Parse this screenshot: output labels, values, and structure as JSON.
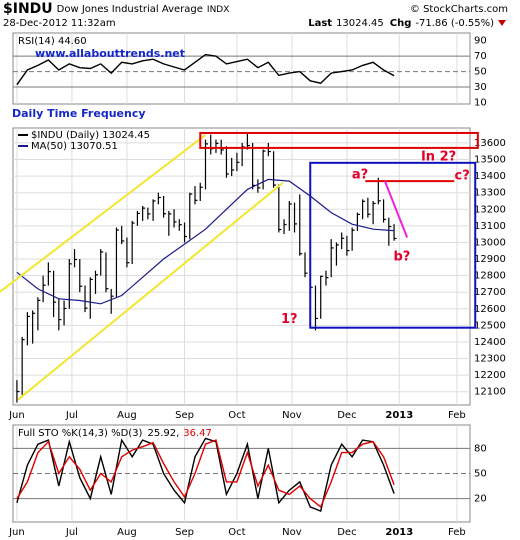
{
  "header": {
    "symbol": "$INDU",
    "name": "Dow Jones Industrial Average",
    "exchange": "INDX",
    "date": "28-Dec-2012 11:32am",
    "source": "© StockCharts.com",
    "last_label": "Last",
    "last": "13024.45",
    "chg_label": "Chg",
    "chg": "-71.86 (-0.55%)"
  },
  "chart_data": [
    {
      "type": "line",
      "title": "RSI(14) 44.60",
      "note": "www.allabouttrends.net",
      "x": [
        0,
        4,
        8,
        12,
        16,
        20,
        24,
        28,
        32,
        36,
        40,
        44,
        48,
        52,
        56,
        60,
        64,
        68,
        72,
        76,
        80,
        84,
        88,
        92,
        96,
        100,
        104,
        108,
        112,
        116,
        120,
        124,
        128,
        132,
        136,
        140,
        144
      ],
      "series": [
        {
          "color": "#000000",
          "values": [
            33,
            52,
            58,
            65,
            52,
            60,
            55,
            54,
            60,
            48,
            62,
            60,
            64,
            66,
            60,
            56,
            52,
            62,
            72,
            70,
            60,
            63,
            66,
            55,
            62,
            45,
            48,
            50,
            38,
            35,
            48,
            50,
            52,
            58,
            62,
            52,
            44.6
          ]
        }
      ],
      "xlim": [
        -1.5,
        173
      ],
      "ylim": [
        8,
        100
      ],
      "yticks": [
        90,
        70,
        50,
        30,
        10
      ],
      "levels": [
        70,
        30
      ],
      "midline": 50
    },
    {
      "type": "ohlc",
      "subtitle": "Daily Time Frequency",
      "x": [
        0,
        2,
        4,
        6,
        8,
        10,
        12,
        14,
        16,
        18,
        20,
        22,
        24,
        26,
        28,
        30,
        32,
        34,
        36,
        38,
        40,
        42,
        44,
        46,
        48,
        50,
        52,
        54,
        56,
        58,
        60,
        62,
        64,
        66,
        68,
        70,
        72,
        74,
        76,
        78,
        80,
        82,
        84,
        86,
        88,
        90,
        92,
        94,
        96,
        98,
        100,
        102,
        104,
        106,
        108,
        110,
        112,
        114,
        116,
        118,
        120,
        122,
        124,
        126,
        128,
        130,
        132,
        134,
        136,
        138,
        140,
        142,
        144
      ],
      "series": [
        {
          "name": "$INDU (Daily) 13024.45",
          "color": "#000000",
          "high": [
            12170,
            12430,
            12580,
            12590,
            12670,
            12800,
            12880,
            12830,
            12660,
            12650,
            12900,
            12960,
            12900,
            12740,
            12790,
            12830,
            12960,
            12940,
            12720,
            13090,
            13100,
            13030,
            13130,
            13190,
            13220,
            13210,
            13260,
            13300,
            13280,
            13190,
            13200,
            13140,
            13120,
            13300,
            13340,
            13360,
            13620,
            13650,
            13620,
            13620,
            13580,
            13510,
            13540,
            13600,
            13660,
            13600,
            13380,
            13560,
            13600,
            13550,
            13350,
            13140,
            13250,
            13240,
            13290,
            12940,
            12840,
            12740,
            12800,
            12830,
            13020,
            13000,
            13060,
            13040,
            13090,
            13180,
            13260,
            13270,
            13250,
            13390,
            13260,
            13150,
            13110
          ],
          "low": [
            12035,
            12080,
            12380,
            12390,
            12470,
            12640,
            12740,
            12550,
            12470,
            12500,
            12600,
            12850,
            12700,
            12580,
            12540,
            12690,
            12800,
            12700,
            12570,
            12670,
            12990,
            12850,
            12870,
            13100,
            13130,
            13140,
            13130,
            13230,
            13150,
            13040,
            13090,
            13070,
            13000,
            13020,
            13230,
            13250,
            13320,
            13530,
            13540,
            13530,
            13390,
            13400,
            13430,
            13460,
            13560,
            13320,
            13300,
            13320,
            13520,
            13330,
            13060,
            13050,
            13070,
            13060,
            12920,
            12790,
            12710,
            12470,
            12540,
            12740,
            12790,
            12860,
            12960,
            12920,
            12950,
            13070,
            13140,
            13150,
            13110,
            13230,
            13120,
            12980,
            13010
          ],
          "close": [
            12101,
            12414,
            12554,
            12573,
            12651,
            12742,
            12824,
            12640,
            12535,
            12602,
            12871,
            12897,
            12736,
            12604,
            12777,
            12805,
            12943,
            12721,
            12676,
            13075,
            13009,
            12878,
            13117,
            13175,
            13207,
            13172,
            13250,
            13271,
            13173,
            13172,
            13124,
            13107,
            13036,
            13292,
            13254,
            13333,
            13594,
            13565,
            13597,
            13558,
            13413,
            13437,
            13483,
            13576,
            13584,
            13344,
            13329,
            13551,
            13548,
            13346,
            13078,
            13108,
            13232,
            13112,
            12932,
            12815,
            12730,
            12542,
            12796,
            12788,
            12967,
            12985,
            13025,
            12951,
            13074,
            13169,
            13248,
            13170,
            13235,
            13251,
            13139,
            13096,
            13024
          ]
        },
        {
          "name": "MA(50) 13070.51",
          "color": "#1a1a8c",
          "x": [
            0,
            8,
            16,
            24,
            32,
            40,
            48,
            56,
            64,
            72,
            80,
            88,
            96,
            104,
            112,
            120,
            128,
            136,
            144
          ],
          "values": [
            12820,
            12720,
            12660,
            12650,
            12630,
            12680,
            12790,
            12900,
            12990,
            13080,
            13200,
            13320,
            13380,
            13370,
            13280,
            13180,
            13110,
            13080,
            13071
          ]
        }
      ],
      "xlim": [
        -1.5,
        173
      ],
      "ylim": [
        12020,
        13690
      ],
      "xticks": [
        {
          "value": 0,
          "label": "Jun"
        },
        {
          "value": 21,
          "label": "Jul"
        },
        {
          "value": 42,
          "label": "Aug"
        },
        {
          "value": 64,
          "label": "Sep"
        },
        {
          "value": 84,
          "label": "Oct"
        },
        {
          "value": 105,
          "label": "Nov"
        },
        {
          "value": 126,
          "label": "Dec"
        },
        {
          "value": 146,
          "label": "2013"
        },
        {
          "value": 168,
          "label": "Feb"
        }
      ],
      "yticks": [
        12100,
        12200,
        12300,
        12400,
        12500,
        12600,
        12700,
        12800,
        12900,
        13000,
        13100,
        13200,
        13300,
        13400,
        13500,
        13600
      ],
      "grid": true,
      "annotation_color": "#e4002b",
      "annotations": [
        {
          "text": "1?",
          "x": 104,
          "y": 12534
        },
        {
          "text": "a?",
          "x": 131,
          "y": 13407
        },
        {
          "text": "b?",
          "x": 147,
          "y": 12913
        },
        {
          "text": "c?",
          "x": 170,
          "y": 13400
        },
        {
          "text": "In 2?",
          "x": 161,
          "y": 13516
        }
      ],
      "shapes": [
        {
          "kind": "line",
          "x": [
            -6.5,
            72
          ],
          "y": [
            12702,
            13648
          ],
          "color": "#f2e62e"
        },
        {
          "kind": "line",
          "x": [
            0.4,
            101.5
          ],
          "y": [
            12052,
            13359
          ],
          "color": "#f2e62e"
        },
        {
          "kind": "rect",
          "x": [
            70,
            176
          ],
          "y": [
            13570,
            13660
          ],
          "color": "#e00000"
        },
        {
          "kind": "rect",
          "x": [
            112,
            175
          ],
          "y": [
            12486,
            13480
          ],
          "color": "#1010c0"
        },
        {
          "kind": "line",
          "x": [
            133,
            167
          ],
          "y": [
            13370,
            13370
          ],
          "color": "#e00000"
        },
        {
          "kind": "line",
          "x": [
            140.5,
            149
          ],
          "y": [
            13370,
            13030
          ],
          "color": "#ee22dd"
        }
      ]
    },
    {
      "type": "line",
      "title": "Full STO %K(14,3) %D(3)",
      "x": [
        0,
        4,
        8,
        12,
        16,
        20,
        24,
        28,
        32,
        36,
        40,
        44,
        48,
        52,
        56,
        60,
        64,
        68,
        72,
        76,
        80,
        84,
        88,
        92,
        96,
        100,
        104,
        108,
        112,
        116,
        120,
        124,
        128,
        132,
        136,
        140,
        144
      ],
      "series": [
        {
          "color": "#000000",
          "last_label": "25.92,",
          "values": [
            15,
            60,
            85,
            90,
            35,
            88,
            45,
            20,
            70,
            25,
            90,
            70,
            90,
            85,
            50,
            30,
            15,
            70,
            92,
            88,
            25,
            50,
            85,
            20,
            80,
            15,
            30,
            40,
            10,
            5,
            60,
            85,
            70,
            90,
            88,
            60,
            25.92
          ]
        },
        {
          "color": "#e00000",
          "last_label": "36.47",
          "values": [
            20,
            40,
            75,
            88,
            50,
            70,
            55,
            30,
            50,
            40,
            70,
            78,
            82,
            87,
            62,
            40,
            22,
            50,
            85,
            90,
            40,
            40,
            75,
            35,
            60,
            30,
            25,
            35,
            20,
            10,
            40,
            75,
            75,
            85,
            88,
            70,
            36.47
          ]
        }
      ],
      "xlim": [
        -1.5,
        173
      ],
      "ylim": [
        -8,
        108
      ],
      "xticks": [
        {
          "value": 0,
          "label": "Jun"
        },
        {
          "value": 21,
          "label": "Jul"
        },
        {
          "value": 42,
          "label": "Aug"
        },
        {
          "value": 64,
          "label": "Sep"
        },
        {
          "value": 84,
          "label": "Oct"
        },
        {
          "value": 105,
          "label": "Nov"
        },
        {
          "value": 126,
          "label": "Dec"
        },
        {
          "value": 146,
          "label": "2013"
        },
        {
          "value": 168,
          "label": "Feb"
        }
      ],
      "yticks": [
        80,
        50,
        20
      ],
      "levels": [
        80,
        20
      ],
      "midline": 50
    }
  ]
}
